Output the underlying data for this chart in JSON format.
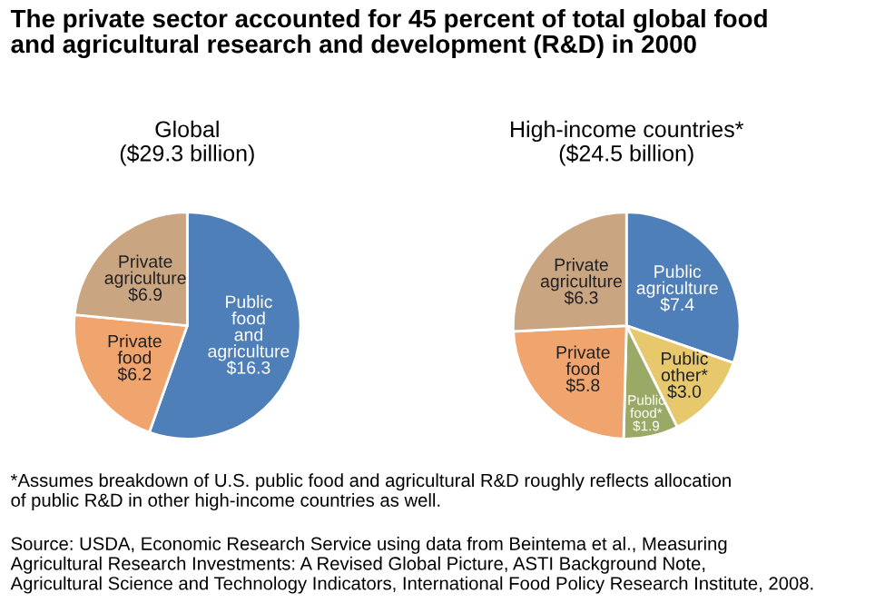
{
  "chart_data": [
    {
      "type": "pie",
      "title": "The private sector accounted for 45 percent of total global food\nand agricultural research and development (R&D) in 2000",
      "subtitle": "Global\n($29.3 billion)",
      "categories": [
        "Public\nfood\nand\nagriculture",
        "Private\nfood",
        "Private\nagriculture"
      ],
      "values": [
        16.3,
        6.2,
        6.9
      ],
      "value_labels": [
        "$16.3",
        "$6.2",
        "$6.9"
      ],
      "colors": [
        "#4f7fb8",
        "#f0a46e",
        "#c9a582"
      ]
    },
    {
      "type": "pie",
      "subtitle": "High-income countries*\n($24.5 billion)",
      "categories": [
        "Public\nagriculture",
        "Public\nother*",
        "Public\nfood*",
        "Private\nfood",
        "Private\nagriculture"
      ],
      "values": [
        7.4,
        3.0,
        1.9,
        5.8,
        6.3
      ],
      "value_labels": [
        "$7.4",
        "$3.0",
        "$1.9",
        "$5.8",
        "$6.3"
      ],
      "colors": [
        "#4f7fb8",
        "#e8c86c",
        "#9aaa66",
        "#f0a46e",
        "#c9a582"
      ],
      "annotations": [
        "*Assumes breakdown of U.S. public food and agricultural R&D roughly reflects allocation\nof public R&D in other high-income countries as well.",
        "Source: USDA, Economic Research Service using data from Beintema et al., Measuring\nAgricultural Research Investments: A Revised Global Picture, ASTI Background Note,\nAgricultural Science and Technology Indicators, International Food Policy Research Institute, 2008."
      ]
    }
  ]
}
